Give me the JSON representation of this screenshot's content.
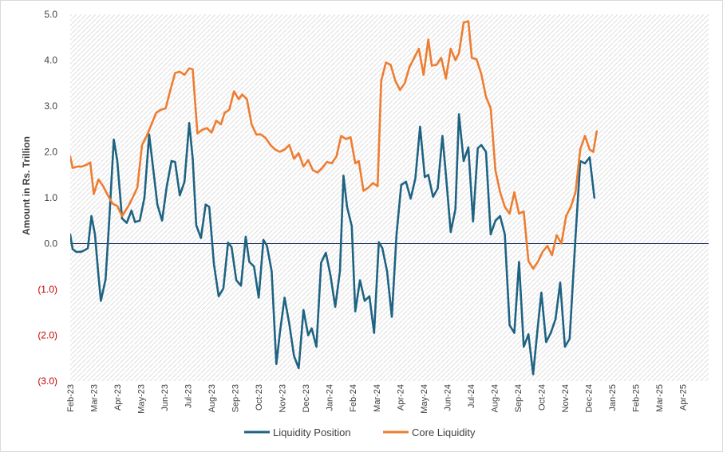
{
  "chart_data": {
    "type": "line",
    "ylabel": "Amount in Rs. Trillion",
    "ylim": [
      -3.0,
      5.0
    ],
    "y_ticks": [
      {
        "value": 5,
        "label": "5.0"
      },
      {
        "value": 4,
        "label": "4.0"
      },
      {
        "value": 3,
        "label": "3.0"
      },
      {
        "value": 2,
        "label": "2.0"
      },
      {
        "value": 1,
        "label": "1.0"
      },
      {
        "value": 0,
        "label": "0.0"
      },
      {
        "value": -1,
        "label": "(1.0)"
      },
      {
        "value": -2,
        "label": "(2.0)"
      },
      {
        "value": -3,
        "label": "(3.0)"
      }
    ],
    "x_ticks": [
      "Feb-23",
      "Mar-23",
      "Apr-23",
      "May-23",
      "Jun-23",
      "Jul-23",
      "Aug-23",
      "Sep-23",
      "Oct-23",
      "Nov-23",
      "Dec-23",
      "Jan-24",
      "Feb-24",
      "Mar-24",
      "Apr-24",
      "May-24",
      "Jun-24",
      "Jul-24",
      "Aug-24",
      "Sep-24",
      "Oct-24",
      "Nov-24",
      "Dec-24",
      "Jan-25",
      "Feb-25",
      "Mar-25",
      "Apr-25"
    ],
    "x_range": [
      0,
      27.1
    ],
    "grid": false,
    "background": "diagonal-hatch",
    "legend_position": "bottom",
    "series": [
      {
        "name": "Liquidity Position",
        "color": "#1f6382",
        "points": [
          [
            0.0,
            0.2
          ],
          [
            0.1,
            -0.12
          ],
          [
            0.25,
            -0.18
          ],
          [
            0.45,
            -0.18
          ],
          [
            0.6,
            -0.15
          ],
          [
            0.75,
            -0.1
          ],
          [
            0.9,
            0.6
          ],
          [
            1.05,
            0.2
          ],
          [
            1.2,
            -0.7
          ],
          [
            1.3,
            -1.25
          ],
          [
            1.5,
            -0.78
          ],
          [
            1.65,
            0.45
          ],
          [
            1.85,
            2.27
          ],
          [
            2.0,
            1.8
          ],
          [
            2.2,
            0.55
          ],
          [
            2.4,
            0.45
          ],
          [
            2.6,
            0.72
          ],
          [
            2.75,
            0.47
          ],
          [
            2.95,
            0.5
          ],
          [
            3.15,
            1.0
          ],
          [
            3.35,
            2.38
          ],
          [
            3.5,
            1.73
          ],
          [
            3.7,
            0.85
          ],
          [
            3.9,
            0.5
          ],
          [
            4.1,
            1.25
          ],
          [
            4.3,
            1.8
          ],
          [
            4.45,
            1.78
          ],
          [
            4.65,
            1.05
          ],
          [
            4.85,
            1.35
          ],
          [
            5.05,
            2.63
          ],
          [
            5.2,
            1.85
          ],
          [
            5.35,
            0.4
          ],
          [
            5.55,
            0.12
          ],
          [
            5.75,
            0.85
          ],
          [
            5.9,
            0.8
          ],
          [
            6.1,
            -0.45
          ],
          [
            6.3,
            -1.15
          ],
          [
            6.5,
            -0.98
          ],
          [
            6.7,
            0.02
          ],
          [
            6.85,
            -0.08
          ],
          [
            7.05,
            -0.8
          ],
          [
            7.25,
            -0.92
          ],
          [
            7.45,
            0.15
          ],
          [
            7.6,
            -0.4
          ],
          [
            7.8,
            -0.5
          ],
          [
            8.0,
            -1.18
          ],
          [
            8.2,
            0.08
          ],
          [
            8.35,
            -0.05
          ],
          [
            8.55,
            -0.6
          ],
          [
            8.75,
            -2.63
          ],
          [
            8.9,
            -1.95
          ],
          [
            9.1,
            -1.18
          ],
          [
            9.3,
            -1.75
          ],
          [
            9.5,
            -2.45
          ],
          [
            9.7,
            -2.72
          ],
          [
            9.9,
            -1.45
          ],
          [
            10.1,
            -2.0
          ],
          [
            10.25,
            -1.85
          ],
          [
            10.45,
            -2.25
          ],
          [
            10.65,
            -0.42
          ],
          [
            10.85,
            -0.2
          ],
          [
            11.05,
            -0.7
          ],
          [
            11.25,
            -1.38
          ],
          [
            11.45,
            -0.6
          ],
          [
            11.6,
            1.48
          ],
          [
            11.75,
            0.8
          ],
          [
            11.95,
            0.38
          ],
          [
            12.1,
            -1.48
          ],
          [
            12.3,
            -0.8
          ],
          [
            12.5,
            -1.25
          ],
          [
            12.7,
            -1.15
          ],
          [
            12.9,
            -1.95
          ],
          [
            13.1,
            0.03
          ],
          [
            13.25,
            -0.1
          ],
          [
            13.45,
            -0.6
          ],
          [
            13.65,
            -1.6
          ],
          [
            13.85,
            0.2
          ],
          [
            14.05,
            1.28
          ],
          [
            14.25,
            1.35
          ],
          [
            14.45,
            0.98
          ],
          [
            14.65,
            1.42
          ],
          [
            14.85,
            2.55
          ],
          [
            15.05,
            1.45
          ],
          [
            15.2,
            1.5
          ],
          [
            15.4,
            1.02
          ],
          [
            15.6,
            1.2
          ],
          [
            15.8,
            2.35
          ],
          [
            15.95,
            1.5
          ],
          [
            16.15,
            0.25
          ],
          [
            16.35,
            0.75
          ],
          [
            16.5,
            2.82
          ],
          [
            16.7,
            1.8
          ],
          [
            16.9,
            2.1
          ],
          [
            17.1,
            0.48
          ],
          [
            17.3,
            2.08
          ],
          [
            17.45,
            2.15
          ],
          [
            17.65,
            2.0
          ],
          [
            17.85,
            0.2
          ],
          [
            18.05,
            0.5
          ],
          [
            18.25,
            0.6
          ],
          [
            18.45,
            0.2
          ],
          [
            18.65,
            -1.78
          ],
          [
            18.85,
            -1.95
          ],
          [
            19.05,
            -0.4
          ],
          [
            19.25,
            -2.25
          ],
          [
            19.45,
            -1.98
          ],
          [
            19.65,
            -2.85
          ],
          [
            19.85,
            -1.8
          ],
          [
            20.0,
            -1.07
          ],
          [
            20.2,
            -2.15
          ],
          [
            20.4,
            -1.95
          ],
          [
            20.6,
            -1.65
          ],
          [
            20.8,
            -0.85
          ],
          [
            21.0,
            -2.25
          ],
          [
            21.2,
            -2.08
          ],
          [
            21.45,
            0.15
          ],
          [
            21.65,
            1.8
          ],
          [
            21.85,
            1.75
          ],
          [
            22.05,
            1.88
          ],
          [
            22.25,
            1.0
          ]
        ]
      },
      {
        "name": "Core Liquidity",
        "color": "#ed7d31",
        "points": [
          [
            0.0,
            1.9
          ],
          [
            0.1,
            1.65
          ],
          [
            0.3,
            1.68
          ],
          [
            0.5,
            1.68
          ],
          [
            0.7,
            1.72
          ],
          [
            0.85,
            1.77
          ],
          [
            1.0,
            1.08
          ],
          [
            1.2,
            1.4
          ],
          [
            1.4,
            1.25
          ],
          [
            1.6,
            1.05
          ],
          [
            1.8,
            0.87
          ],
          [
            2.0,
            0.82
          ],
          [
            2.2,
            0.6
          ],
          [
            2.45,
            0.8
          ],
          [
            2.65,
            1.0
          ],
          [
            2.85,
            1.22
          ],
          [
            3.05,
            2.15
          ],
          [
            3.25,
            2.35
          ],
          [
            3.45,
            2.6
          ],
          [
            3.65,
            2.85
          ],
          [
            3.85,
            2.92
          ],
          [
            4.05,
            2.95
          ],
          [
            4.25,
            3.35
          ],
          [
            4.45,
            3.72
          ],
          [
            4.65,
            3.75
          ],
          [
            4.85,
            3.68
          ],
          [
            5.05,
            3.82
          ],
          [
            5.2,
            3.8
          ],
          [
            5.4,
            2.4
          ],
          [
            5.6,
            2.48
          ],
          [
            5.8,
            2.52
          ],
          [
            6.0,
            2.42
          ],
          [
            6.2,
            2.68
          ],
          [
            6.4,
            2.6
          ],
          [
            6.55,
            2.85
          ],
          [
            6.75,
            2.92
          ],
          [
            6.95,
            3.32
          ],
          [
            7.15,
            3.15
          ],
          [
            7.3,
            3.25
          ],
          [
            7.5,
            3.15
          ],
          [
            7.7,
            2.6
          ],
          [
            7.9,
            2.38
          ],
          [
            8.1,
            2.38
          ],
          [
            8.3,
            2.3
          ],
          [
            8.5,
            2.15
          ],
          [
            8.7,
            2.05
          ],
          [
            8.9,
            2.0
          ],
          [
            9.1,
            2.05
          ],
          [
            9.3,
            2.15
          ],
          [
            9.5,
            1.85
          ],
          [
            9.7,
            1.97
          ],
          [
            9.9,
            1.68
          ],
          [
            10.1,
            1.82
          ],
          [
            10.3,
            1.6
          ],
          [
            10.5,
            1.55
          ],
          [
            10.7,
            1.65
          ],
          [
            10.9,
            1.78
          ],
          [
            11.1,
            1.75
          ],
          [
            11.3,
            1.9
          ],
          [
            11.5,
            2.35
          ],
          [
            11.7,
            2.28
          ],
          [
            11.9,
            2.32
          ],
          [
            12.1,
            1.75
          ],
          [
            12.25,
            1.8
          ],
          [
            12.45,
            1.15
          ],
          [
            12.65,
            1.22
          ],
          [
            12.85,
            1.32
          ],
          [
            13.05,
            1.25
          ],
          [
            13.2,
            3.55
          ],
          [
            13.4,
            3.95
          ],
          [
            13.6,
            3.9
          ],
          [
            13.8,
            3.55
          ],
          [
            14.0,
            3.35
          ],
          [
            14.2,
            3.5
          ],
          [
            14.4,
            3.85
          ],
          [
            14.6,
            4.05
          ],
          [
            14.8,
            4.25
          ],
          [
            15.0,
            3.68
          ],
          [
            15.2,
            4.45
          ],
          [
            15.35,
            3.88
          ],
          [
            15.55,
            3.9
          ],
          [
            15.75,
            4.05
          ],
          [
            15.95,
            3.6
          ],
          [
            16.15,
            4.25
          ],
          [
            16.35,
            4.0
          ],
          [
            16.5,
            4.15
          ],
          [
            16.7,
            4.82
          ],
          [
            16.9,
            4.85
          ],
          [
            17.05,
            4.05
          ],
          [
            17.25,
            4.02
          ],
          [
            17.45,
            3.7
          ],
          [
            17.65,
            3.2
          ],
          [
            17.85,
            2.95
          ],
          [
            18.05,
            1.6
          ],
          [
            18.25,
            1.12
          ],
          [
            18.45,
            0.8
          ],
          [
            18.65,
            0.65
          ],
          [
            18.85,
            1.12
          ],
          [
            19.05,
            0.65
          ],
          [
            19.25,
            0.7
          ],
          [
            19.45,
            -0.38
          ],
          [
            19.65,
            -0.55
          ],
          [
            19.85,
            -0.4
          ],
          [
            20.05,
            -0.18
          ],
          [
            20.25,
            -0.05
          ],
          [
            20.45,
            -0.25
          ],
          [
            20.65,
            0.18
          ],
          [
            20.85,
            0.0
          ],
          [
            21.05,
            0.6
          ],
          [
            21.25,
            0.8
          ],
          [
            21.45,
            1.12
          ],
          [
            21.65,
            2.05
          ],
          [
            21.85,
            2.35
          ],
          [
            22.05,
            2.05
          ],
          [
            22.2,
            2.0
          ],
          [
            22.35,
            2.45
          ]
        ]
      }
    ]
  }
}
